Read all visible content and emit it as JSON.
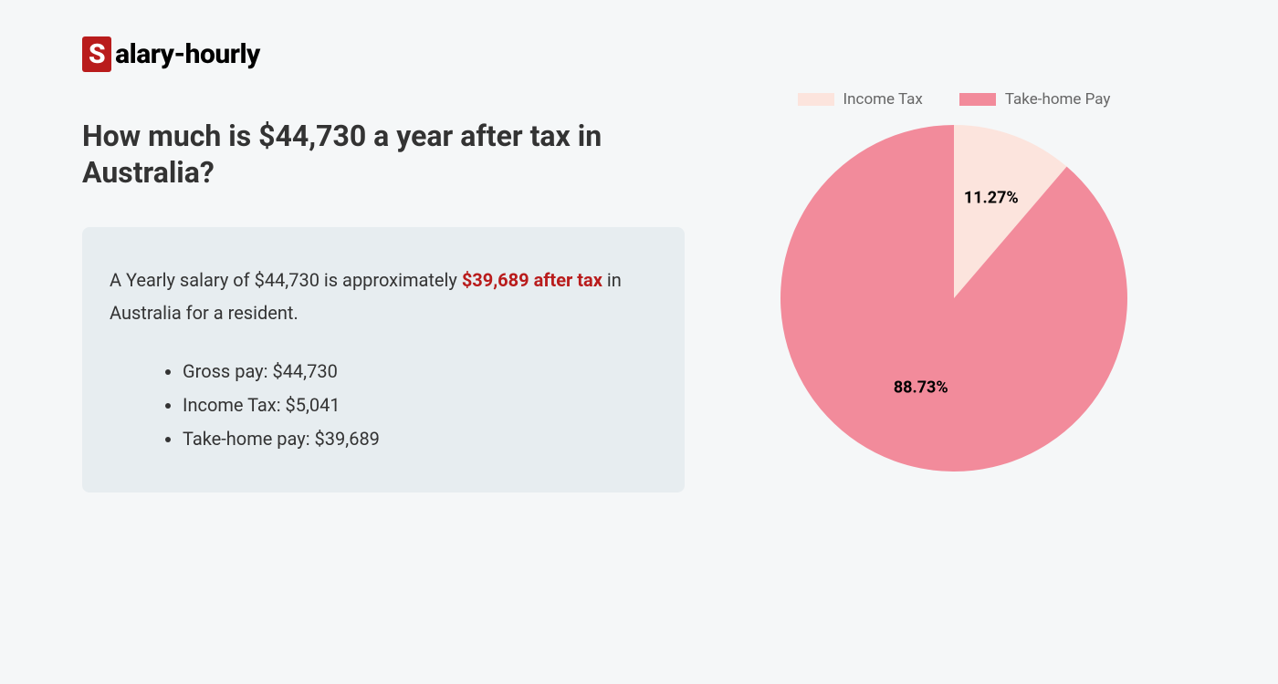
{
  "logo": {
    "badge": "S",
    "text": "alary-hourly"
  },
  "heading": "How much is $44,730 a year after tax in Australia?",
  "summary": {
    "pre": "A Yearly salary of $44,730 is approximately ",
    "highlight": "$39,689 after tax",
    "post": " in Australia for a resident."
  },
  "bullets": [
    "Gross pay: $44,730",
    "Income Tax: $5,041",
    "Take-home pay: $39,689"
  ],
  "chart": {
    "type": "pie",
    "slices": [
      {
        "label": "Income Tax",
        "value": 11.27,
        "percent_label": "11.27%",
        "color": "#fce4dd"
      },
      {
        "label": "Take-home Pay",
        "value": 88.73,
        "percent_label": "88.73%",
        "color": "#f28b9b"
      }
    ],
    "background_color": "#f5f7f8",
    "label_fontsize": 18,
    "label_fontweight": 700,
    "legend_fontsize": 17,
    "legend_color": "#666666",
    "radius": 190,
    "start_angle_deg": -90
  }
}
